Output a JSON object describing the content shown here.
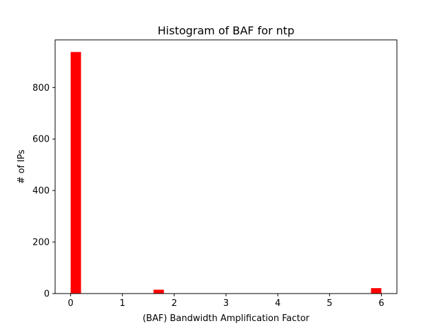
{
  "chart_data": {
    "type": "bar",
    "title": "Histogram of BAF for ntp",
    "xlabel": "(BAF) Bandwidth Amplification Factor",
    "ylabel": "# of IPs",
    "xlim": [
      -0.3,
      6.3
    ],
    "ylim": [
      0,
      985
    ],
    "xticks": [
      0,
      1,
      2,
      3,
      4,
      5,
      6
    ],
    "yticks": [
      0,
      200,
      400,
      600,
      800
    ],
    "bin_width": 0.2,
    "bars": [
      {
        "x_start": 0.0,
        "x_end": 0.2,
        "count": 938
      },
      {
        "x_start": 1.6,
        "x_end": 1.8,
        "count": 15
      },
      {
        "x_start": 5.8,
        "x_end": 6.0,
        "count": 21
      }
    ],
    "bar_color": "#ff0000",
    "grid": false,
    "legend": "none"
  }
}
